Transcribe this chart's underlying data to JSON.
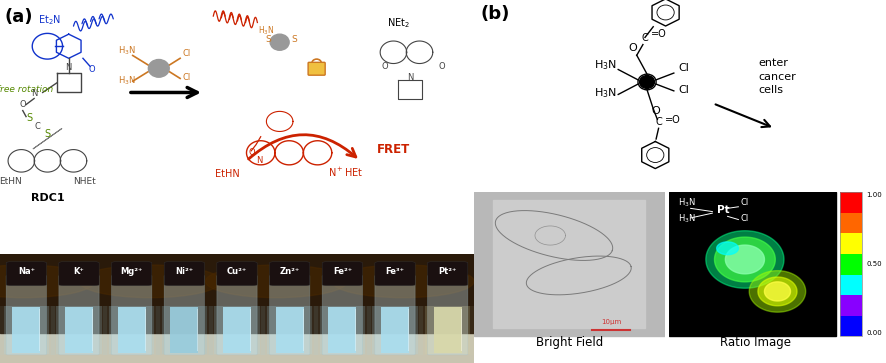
{
  "fig_width": 8.86,
  "fig_height": 3.63,
  "dpi": 100,
  "bg_color": "#ffffff",
  "panel_a_label": "(a)",
  "panel_b_label": "(b)",
  "label_fontsize": 13,
  "label_fontweight": "bold",
  "bright_field_label": "Bright Field",
  "ratio_image_label": "Ratio Image",
  "enter_cancer_text": "enter\ncancer\ncells",
  "fret_text": "FRET",
  "rdc1_text": "RDC1",
  "free_rotation_text": "free rotation",
  "ion_labels": [
    "Na⁺",
    "K⁺",
    "Mg²⁺",
    "Ni²⁺",
    "Cu²⁺",
    "Zn²⁺",
    "Fe²⁺",
    "Fe³⁺",
    "Pt²⁺"
  ],
  "tube_liquid_colors": [
    "#aaddee",
    "#aaddee",
    "#aaddee",
    "#99ccdd",
    "#aaddee",
    "#aaddee",
    "#aaddee",
    "#aaddee",
    "#d8d8aa"
  ],
  "tube_bg_color": "#2a1a0a",
  "tube_shelf_color": "#e0ddd8",
  "tube_cap_color": "#1a1010",
  "tube_glass_color": "#ddeeff",
  "arrow_color": "#111111",
  "fret_arrow_color": "#cc0000",
  "rhodamine_red": "#cc2200",
  "coumarin_blue": "#1133cc",
  "green_label": "#558800",
  "orange_pt": "#cc7722",
  "cisplatin_gray": "#999999",
  "colorbar_top": "1.00",
  "colorbar_bot": "0.00",
  "cb_colors": [
    "#ff0000",
    "#ff6600",
    "#ffff00",
    "#00ff00",
    "#00ffff",
    "#0000ff"
  ],
  "cb_pink": "#ff88cc"
}
